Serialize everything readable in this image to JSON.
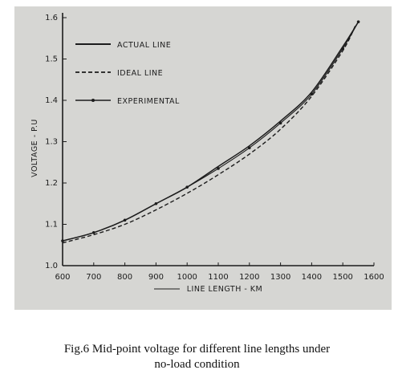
{
  "chart_data": {
    "type": "line",
    "xlabel": "LINE LENGTH - KM",
    "ylabel": "VOLTAGE - P.U",
    "xlim": [
      600,
      1600
    ],
    "ylim": [
      1.0,
      1.6
    ],
    "x_ticks": [
      "600",
      "700",
      "800",
      "900",
      "1000",
      "1100",
      "1200",
      "1300",
      "1400",
      "1500",
      "1600"
    ],
    "y_ticks": [
      "1.0",
      "1.1",
      "1.2",
      "1.3",
      "1.4",
      "1.5",
      "1.6"
    ],
    "legend_position": "top-left",
    "series": [
      {
        "name": "ACTUAL LINE",
        "style": "solid",
        "x": [
          600,
          700,
          800,
          900,
          1000,
          1100,
          1200,
          1300,
          1400,
          1500,
          1550
        ],
        "y": [
          1.06,
          1.08,
          1.11,
          1.15,
          1.19,
          1.24,
          1.29,
          1.35,
          1.42,
          1.53,
          1.59
        ]
      },
      {
        "name": "IDEAL LINE",
        "style": "dashed",
        "x": [
          600,
          700,
          800,
          900,
          1000,
          1100,
          1200,
          1300,
          1400,
          1500,
          1540
        ],
        "y": [
          1.055,
          1.075,
          1.1,
          1.135,
          1.175,
          1.22,
          1.27,
          1.33,
          1.41,
          1.52,
          1.58
        ]
      },
      {
        "name": "EXPERIMENTAL",
        "style": "solid-markers",
        "x": [
          600,
          700,
          800,
          900,
          1000,
          1100,
          1200,
          1300,
          1400,
          1500,
          1550
        ],
        "y": [
          1.06,
          1.08,
          1.11,
          1.15,
          1.19,
          1.235,
          1.285,
          1.345,
          1.415,
          1.525,
          1.59
        ]
      }
    ],
    "colors": {
      "ink": "#1c1c1c",
      "background": "#d6d6d3"
    }
  },
  "caption": {
    "line1": "Fig.6 Mid-point voltage for different line lengths under",
    "line2": "no-load condition"
  }
}
